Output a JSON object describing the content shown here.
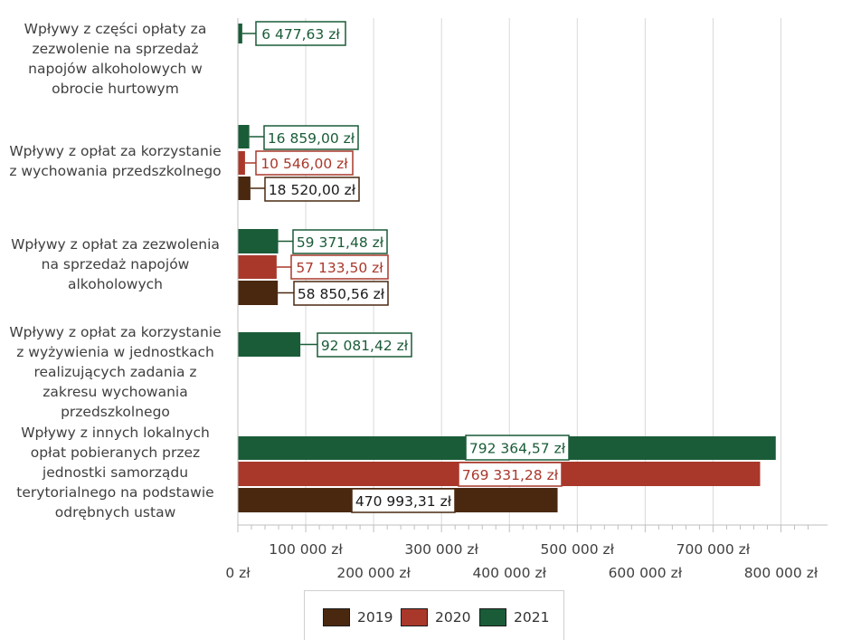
{
  "chart_data": {
    "type": "bar",
    "orientation": "horizontal",
    "categories": [
      "Wpływy z części opłaty za zezwolenie na sprzedaż napojów alkoholowych w obrocie hurtowym",
      "Wpływy z opłat za korzystanie z wychowania przedszkolnego",
      "Wpływy z opłat za zezwolenia na sprzedaż napojów alkoholowych",
      "Wpływy z opłat za korzystanie z wyżywienia w jednostkach realizujących zadania z zakresu wychowania przedszkolnego",
      "Wpływy z innych lokalnych opłat pobieranych przez jednostki samorządu terytorialnego na podstawie odrębnych ustaw"
    ],
    "category_lines": [
      [
        "Wpływy z części opłaty za",
        "zezwolenie na sprzedaż",
        "napojów alkoholowych w",
        "obrocie hurtowym"
      ],
      [
        "Wpływy z opłat za korzystanie",
        "z wychowania przedszkolnego"
      ],
      [
        "Wpływy z opłat za zezwolenia",
        "na sprzedaż napojów",
        "alkoholowych"
      ],
      [
        "Wpływy z opłat za korzystanie",
        "z wyżywienia w jednostkach",
        "realizujących zadania z",
        "zakresu wychowania",
        "przedszkolnego"
      ],
      [
        "Wpływy z innych lokalnych",
        "opłat pobieranych przez",
        "jednostki samorządu",
        "terytorialnego na podstawie",
        "odrębnych ustaw"
      ]
    ],
    "series": [
      {
        "name": "2019",
        "color": "#4a2810",
        "values": [
          null,
          18520.0,
          58850.56,
          null,
          470993.31
        ],
        "labels": [
          null,
          "18 520,00 zł",
          "58 850,56 zł",
          null,
          "470 993,31 zł"
        ]
      },
      {
        "name": "2020",
        "color": "#a9382b",
        "values": [
          null,
          10546.0,
          57133.5,
          null,
          769331.28
        ],
        "labels": [
          null,
          "10 546,00 zł",
          "57 133,50 zł",
          null,
          "769 331,28 zł"
        ]
      },
      {
        "name": "2021",
        "color": "#1a5c38",
        "values": [
          6477.63,
          16859.0,
          59371.48,
          92081.42,
          792364.57
        ],
        "labels": [
          "6 477,63 zł",
          "16 859,00 zł",
          "59 371,48 zł",
          "92 081,42 zł",
          "792 364,57 zł"
        ]
      }
    ],
    "x_ticks": [
      {
        "value": 0,
        "label": "0 zł"
      },
      {
        "value": 100000,
        "label": "100 000 zł"
      },
      {
        "value": 200000,
        "label": "200 000 zł"
      },
      {
        "value": 300000,
        "label": "300 000 zł"
      },
      {
        "value": 400000,
        "label": "400 000 zł"
      },
      {
        "value": 500000,
        "label": "500 000 zł"
      },
      {
        "value": 600000,
        "label": "600 000 zł"
      },
      {
        "value": 700000,
        "label": "700 000 zł"
      },
      {
        "value": 800000,
        "label": "800 000 zł"
      }
    ],
    "xlim": [
      0,
      830000
    ],
    "grid": true,
    "legend_position": "bottom"
  }
}
